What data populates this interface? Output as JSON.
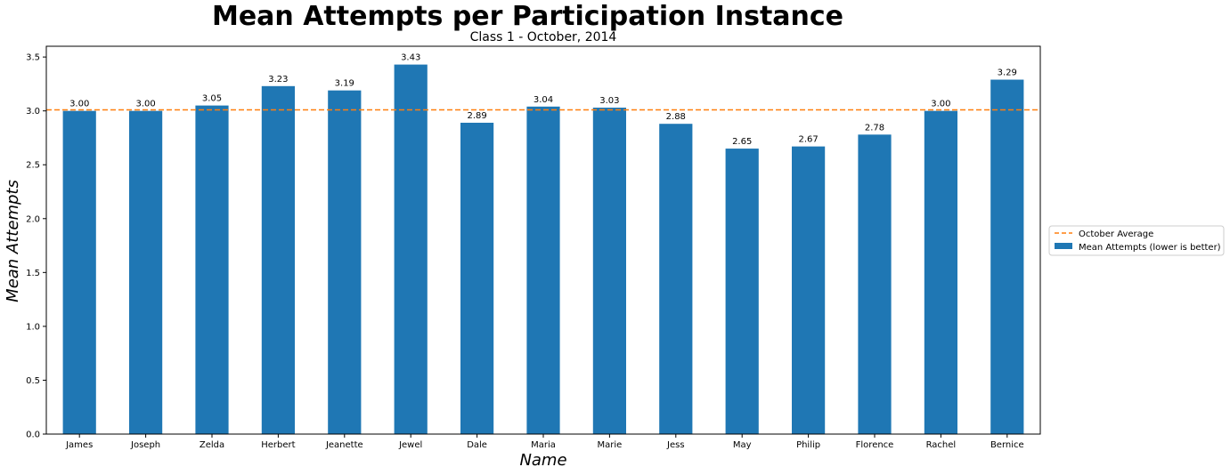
{
  "chart_data": {
    "type": "bar",
    "title": "Mean Attempts per Participation Instance",
    "subtitle": "Class 1 - October, 2014",
    "xlabel": "Name",
    "ylabel": "Mean Attempts",
    "categories": [
      "James",
      "Joseph",
      "Zelda",
      "Herbert",
      "Jeanette",
      "Jewel",
      "Dale",
      "Maria",
      "Marie",
      "Jess",
      "May",
      "Philip",
      "Florence",
      "Rachel",
      "Bernice"
    ],
    "series": [
      {
        "name": "Mean Attempts (lower is better)",
        "color": "#1f77b4",
        "values": [
          3.0,
          3.0,
          3.05,
          3.23,
          3.19,
          3.43,
          2.89,
          3.04,
          3.03,
          2.88,
          2.65,
          2.67,
          2.78,
          3.0,
          3.29
        ],
        "labels": [
          "3.00",
          "3.00",
          "3.05",
          "3.23",
          "3.19",
          "3.43",
          "2.89",
          "3.04",
          "3.03",
          "2.88",
          "2.65",
          "2.67",
          "2.78",
          "3.00",
          "3.29"
        ]
      }
    ],
    "reference_line": {
      "name": "October Average",
      "value": 3.01,
      "color": "#ff7f0e",
      "style": "dashed"
    },
    "ylim": [
      0,
      3.6
    ],
    "yticks": [
      "0.0",
      "0.5",
      "1.0",
      "1.5",
      "2.0",
      "2.5",
      "3.0",
      "3.5"
    ],
    "grid": false,
    "legend_position": "center-right, outside plot"
  }
}
